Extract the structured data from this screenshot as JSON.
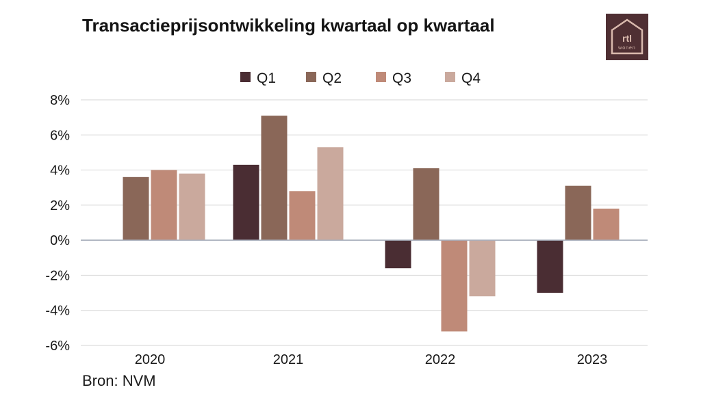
{
  "title": "Transactieprijsontwikkeling kwartaal op kwartaal",
  "source": "Bron: NVM",
  "logo": {
    "top_text": "rtl",
    "bottom_text": "wonen"
  },
  "colors": {
    "Q1": "#4a2d33",
    "Q2": "#8a6758",
    "Q3": "#bf8a78",
    "Q4": "#caa99d",
    "grid": "#d6d6d6",
    "zero_line": "#a9afbd"
  },
  "chart_data": {
    "type": "bar",
    "title": "Transactieprijsontwikkeling kwartaal op kwartaal",
    "xlabel": "",
    "ylabel": "",
    "categories": [
      "2020",
      "2021",
      "2022",
      "2023"
    ],
    "series": [
      {
        "name": "Q1",
        "values": [
          null,
          4.3,
          -1.6,
          -3.0
        ]
      },
      {
        "name": "Q2",
        "values": [
          3.6,
          7.1,
          4.1,
          3.1
        ]
      },
      {
        "name": "Q3",
        "values": [
          4.0,
          2.8,
          -5.2,
          1.8
        ]
      },
      {
        "name": "Q4",
        "values": [
          3.8,
          5.3,
          -3.2,
          null
        ]
      }
    ],
    "ylim": [
      -6,
      8
    ],
    "yticks": [
      8,
      6,
      4,
      2,
      0,
      -2,
      -4,
      -6
    ],
    "ytick_labels": [
      "8%",
      "6%",
      "4%",
      "2%",
      "0%",
      "-2%",
      "-4%",
      "-6%"
    ],
    "grid": true,
    "legend": "top-center"
  }
}
